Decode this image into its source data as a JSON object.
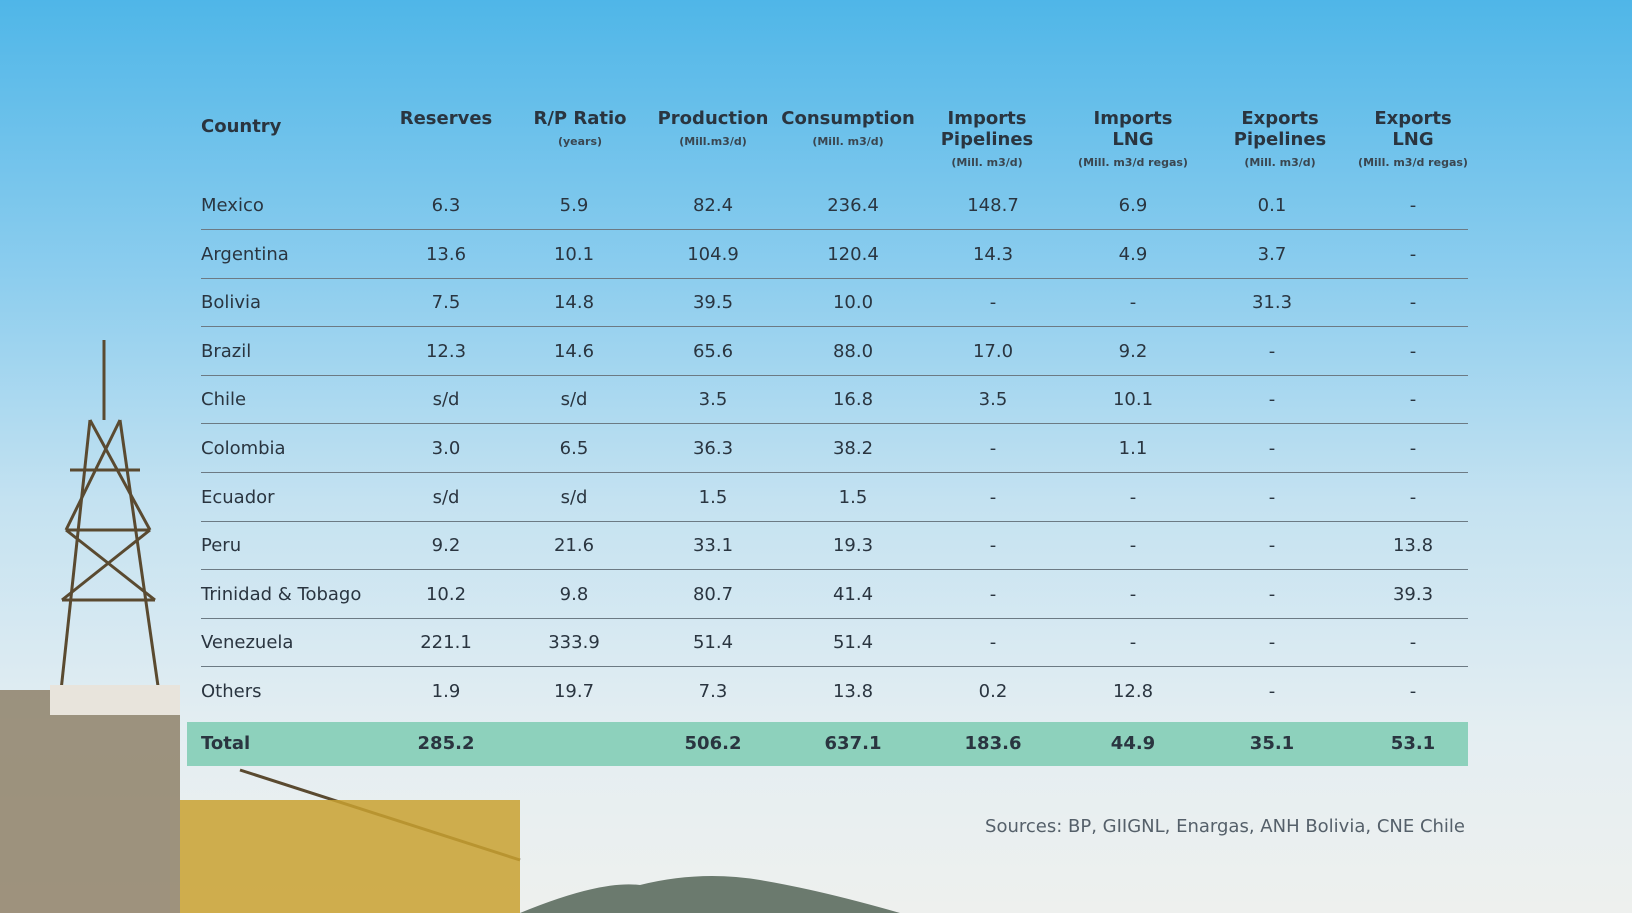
{
  "table": {
    "header": [
      {
        "title": "Country"
      },
      {
        "title": "Reserves"
      },
      {
        "title": "R/P Ratio",
        "subtitle": "(years)"
      },
      {
        "title": "Production",
        "subtitle": "(Mill.m3/d)"
      },
      {
        "title": "Consumption",
        "subtitle": "(Mill. m3/d)"
      },
      {
        "title": "Imports Pipelines",
        "subtitle": "(Mill. m3/d)"
      },
      {
        "title": "Imports LNG",
        "subtitle": "(Mill. m3/d regas)"
      },
      {
        "title": "Exports Pipelines",
        "subtitle": "(Mill. m3/d)"
      },
      {
        "title": "Exports LNG",
        "subtitle": "(Mill. m3/d regas)"
      }
    ],
    "rows": [
      [
        "Mexico",
        "6.3",
        "5.9",
        "82.4",
        "236.4",
        "148.7",
        "6.9",
        "0.1",
        "-"
      ],
      [
        "Argentina",
        "13.6",
        "10.1",
        "104.9",
        "120.4",
        "14.3",
        "4.9",
        "3.7",
        "-"
      ],
      [
        "Bolivia",
        "7.5",
        "14.8",
        "39.5",
        "10.0",
        "-",
        "-",
        "31.3",
        "-"
      ],
      [
        "Brazil",
        "12.3",
        "14.6",
        "65.6",
        "88.0",
        "17.0",
        "9.2",
        "-",
        "-"
      ],
      [
        "Chile",
        "s/d",
        "s/d",
        "3.5",
        "16.8",
        "3.5",
        "10.1",
        "-",
        "-"
      ],
      [
        "Colombia",
        "3.0",
        "6.5",
        "36.3",
        "38.2",
        "-",
        "1.1",
        "-",
        "-"
      ],
      [
        "Ecuador",
        "s/d",
        "s/d",
        "1.5",
        "1.5",
        "-",
        "-",
        "-",
        "-"
      ],
      [
        "Peru",
        "9.2",
        "21.6",
        "33.1",
        "19.3",
        "-",
        "-",
        "-",
        "13.8"
      ],
      [
        "Trinidad & Tobago",
        "10.2",
        "9.8",
        "80.7",
        "41.4",
        "-",
        "-",
        "-",
        "39.3"
      ],
      [
        "Venezuela",
        "221.1",
        "333.9",
        "51.4",
        "51.4",
        "-",
        "-",
        "-",
        "-"
      ],
      [
        "Others",
        "1.9",
        "19.7",
        "7.3",
        "13.8",
        "0.2",
        "12.8",
        "-",
        "-"
      ]
    ],
    "total": [
      "Total",
      "285.2",
      null,
      "506.2",
      "637.1",
      "183.6",
      "44.9",
      "35.1",
      "53.1"
    ]
  },
  "source": "Sources: BP, GIIGNL, Enargas, ANH Bolivia, CNE Chile"
}
